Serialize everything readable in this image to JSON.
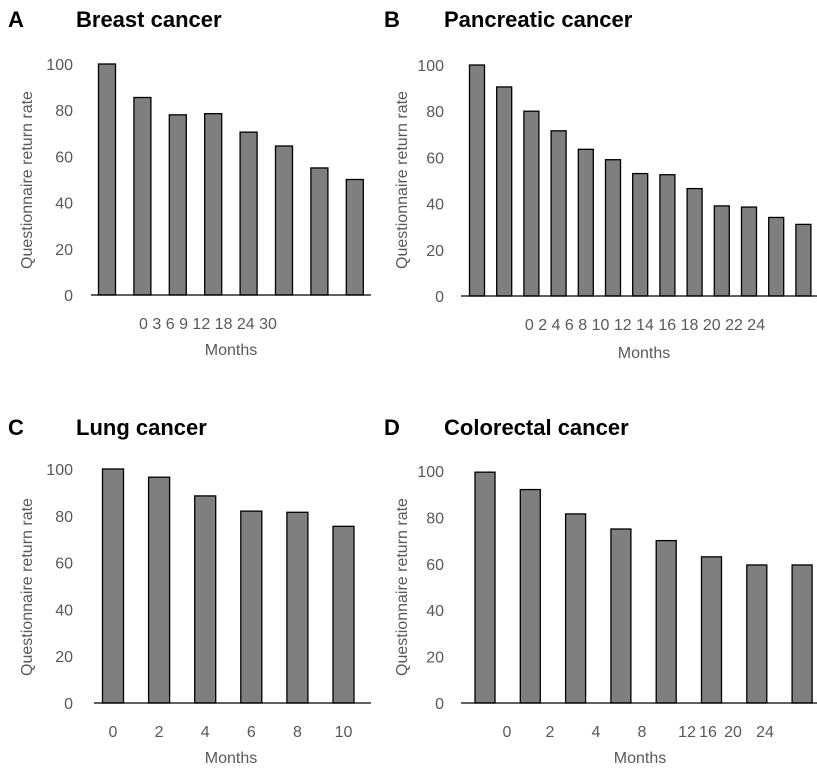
{
  "chart_data": [
    {
      "panel": "A",
      "title": "Breast cancer",
      "type": "bar",
      "xlabel": "Months",
      "ylabel": "Questionnaire return rate",
      "ylim": [
        0,
        100
      ],
      "yticks": [
        "0",
        "20",
        "40",
        "60",
        "80",
        "100"
      ],
      "xtick_text": "0 3 6 9 12 18 24 30",
      "series": [
        {
          "values": [
            100,
            85.5,
            78,
            78.5,
            70.5,
            64.5,
            55,
            50
          ]
        }
      ],
      "bar_color": "#7f7f7f",
      "grid": false
    },
    {
      "panel": "B",
      "title": "Pancreatic cancer",
      "type": "bar",
      "xlabel": "Months",
      "ylabel": "Questionnaire return rate",
      "ylim": [
        0,
        100
      ],
      "yticks": [
        "0",
        "20",
        "40",
        "60",
        "80",
        "100"
      ],
      "xtick_text": "0 2 4 6 8 10 12 14 16 18 20 22 24",
      "series": [
        {
          "values": [
            100,
            90.5,
            80,
            71.5,
            63.5,
            59,
            53,
            52.5,
            46.5,
            39,
            38.5,
            34,
            31
          ]
        }
      ],
      "bar_color": "#7f7f7f",
      "grid": false
    },
    {
      "panel": "C",
      "title": "Lung cancer",
      "type": "bar",
      "xlabel": "Months",
      "ylabel": "Questionnaire return rate",
      "ylim": [
        0,
        100
      ],
      "yticks": [
        "0",
        "20",
        "40",
        "60",
        "80",
        "100"
      ],
      "categories": [
        "0",
        "2",
        "4",
        "6",
        "8",
        "10"
      ],
      "series": [
        {
          "values": [
            100,
            96.5,
            88.5,
            82,
            81.5,
            75.5
          ]
        }
      ],
      "bar_color": "#7f7f7f",
      "grid": false
    },
    {
      "panel": "D",
      "title": "Colorectal cancer",
      "type": "bar",
      "xlabel": "Months",
      "ylabel": "Questionnaire return rate",
      "ylim": [
        0,
        100
      ],
      "yticks": [
        "0",
        "20",
        "40",
        "60",
        "80",
        "100"
      ],
      "categories": [
        "0",
        "2",
        "4",
        "8",
        "12",
        "16",
        "20",
        "24"
      ],
      "series": [
        {
          "values": [
            99.5,
            92,
            81.5,
            75,
            70,
            63,
            59.5,
            59.5
          ]
        }
      ],
      "bar_color": "#7f7f7f",
      "grid": false
    }
  ]
}
